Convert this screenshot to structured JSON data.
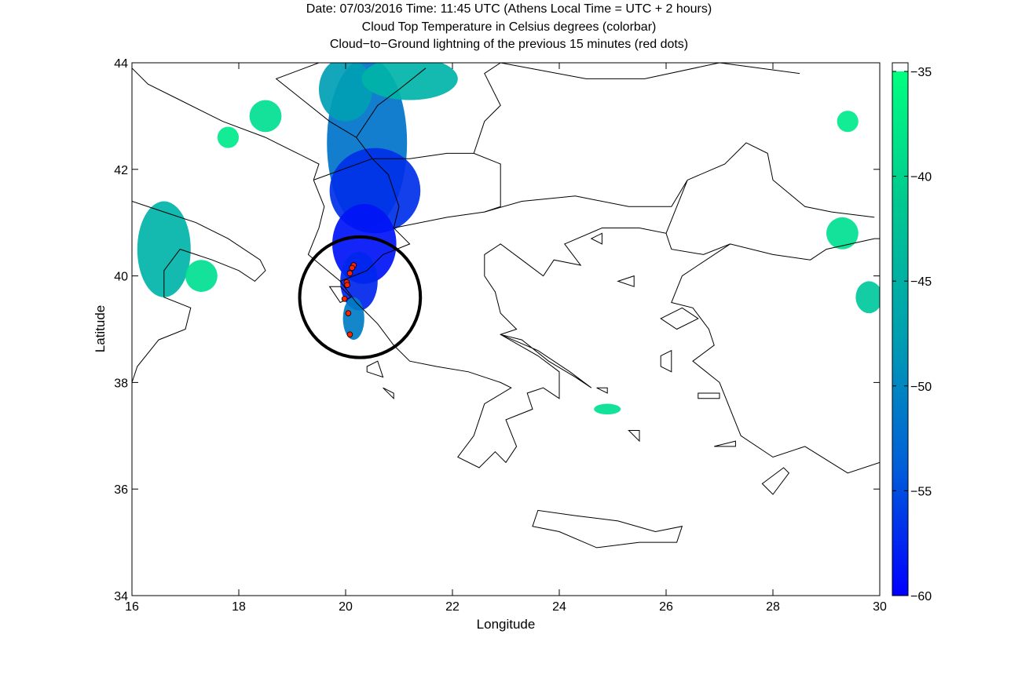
{
  "title_lines": [
    "Date: 07/03/2016 Time: 11:45 UTC (Athens Local Time = UTC + 2 hours)",
    "Cloud Top Temperature in Celsius degrees (colorbar)",
    "Cloud−to−Ground lightning of the previous 15 minutes (red dots)"
  ],
  "chart_data": {
    "type": "heatmap",
    "title": "Date: 07/03/2016 Time: 11:45 UTC (Athens Local Time = UTC + 2 hours)",
    "xlabel": "Longitude",
    "ylabel": "Latitude",
    "xlim": [
      16,
      30
    ],
    "ylim": [
      34,
      44
    ],
    "x_ticks": [
      "16",
      "18",
      "20",
      "22",
      "24",
      "26",
      "28",
      "30"
    ],
    "y_ticks": [
      "34",
      "36",
      "38",
      "40",
      "42",
      "44"
    ],
    "grid": false,
    "colorbar": {
      "label": "Cloud Top Temperature in Celsius degrees",
      "range": [
        -60,
        -35
      ],
      "ticks": [
        "-35",
        "-40",
        "-45",
        "-50",
        "-55",
        "-60"
      ],
      "colors": [
        "#00ff80",
        "#0070d0",
        "#0000ff"
      ]
    },
    "lightning_strikes": {
      "color": "#ff2200",
      "points": [
        {
          "lon": 20.15,
          "lat": 40.2
        },
        {
          "lon": 20.12,
          "lat": 40.15
        },
        {
          "lon": 20.08,
          "lat": 40.05
        },
        {
          "lon": 20.02,
          "lat": 39.88
        },
        {
          "lon": 20.03,
          "lat": 39.83
        },
        {
          "lon": 19.98,
          "lat": 39.57
        },
        {
          "lon": 20.05,
          "lat": 39.3
        },
        {
          "lon": 20.08,
          "lat": 38.9
        }
      ]
    },
    "highlight_circle": {
      "center_lon": 20.27,
      "center_lat": 39.6,
      "radius_deg": 1.13,
      "color": "#000000"
    },
    "cloud_cells": [
      {
        "lon": 20.4,
        "lat": 42.5,
        "rlon": 0.75,
        "rlat": 1.6,
        "temp": -48
      },
      {
        "lon": 20.55,
        "lat": 41.6,
        "rlon": 0.85,
        "rlat": 0.8,
        "temp": -55
      },
      {
        "lon": 20.35,
        "lat": 40.6,
        "rlon": 0.6,
        "rlat": 0.75,
        "temp": -58
      },
      {
        "lon": 20.25,
        "lat": 39.9,
        "rlon": 0.35,
        "rlat": 0.55,
        "temp": -56
      },
      {
        "lon": 20.15,
        "lat": 39.2,
        "rlon": 0.2,
        "rlat": 0.4,
        "temp": -47
      },
      {
        "lon": 20.0,
        "lat": 43.5,
        "rlon": 0.5,
        "rlat": 0.6,
        "temp": -44
      },
      {
        "lon": 21.2,
        "lat": 43.7,
        "rlon": 0.9,
        "rlat": 0.4,
        "temp": -42
      },
      {
        "lon": 16.6,
        "lat": 40.5,
        "rlon": 0.5,
        "rlat": 0.9,
        "temp": -42
      },
      {
        "lon": 17.3,
        "lat": 40.0,
        "rlon": 0.3,
        "rlat": 0.3,
        "temp": -38
      },
      {
        "lon": 18.5,
        "lat": 43.0,
        "rlon": 0.3,
        "rlat": 0.3,
        "temp": -38
      },
      {
        "lon": 29.3,
        "lat": 40.8,
        "rlon": 0.3,
        "rlat": 0.3,
        "temp": -38
      },
      {
        "lon": 29.8,
        "lat": 39.6,
        "rlon": 0.25,
        "rlat": 0.3,
        "temp": -40
      },
      {
        "lon": 29.4,
        "lat": 42.9,
        "rlon": 0.2,
        "rlat": 0.2,
        "temp": -37
      },
      {
        "lon": 24.9,
        "lat": 37.5,
        "rlon": 0.25,
        "rlat": 0.1,
        "temp": -38
      },
      {
        "lon": 17.8,
        "lat": 42.6,
        "rlon": 0.2,
        "rlat": 0.2,
        "temp": -37
      }
    ],
    "coastlines": [
      {
        "name": "greece-mainland",
        "points": [
          [
            19.4,
            41.8
          ],
          [
            19.6,
            41.3
          ],
          [
            19.5,
            40.9
          ],
          [
            19.3,
            40.4
          ],
          [
            19.9,
            39.9
          ],
          [
            20.2,
            39.5
          ],
          [
            20.6,
            39.1
          ],
          [
            20.9,
            38.7
          ],
          [
            21.2,
            38.4
          ],
          [
            21.7,
            38.3
          ],
          [
            22.3,
            38.2
          ],
          [
            22.9,
            38.0
          ],
          [
            23.1,
            37.9
          ],
          [
            22.6,
            37.6
          ],
          [
            22.4,
            37.0
          ],
          [
            22.1,
            36.6
          ],
          [
            22.5,
            36.4
          ],
          [
            22.8,
            36.7
          ],
          [
            23.0,
            36.5
          ],
          [
            23.2,
            36.8
          ],
          [
            23.0,
            37.3
          ],
          [
            23.5,
            37.5
          ],
          [
            23.4,
            37.8
          ],
          [
            23.7,
            37.9
          ],
          [
            24.0,
            37.7
          ],
          [
            24.0,
            38.2
          ],
          [
            23.6,
            38.5
          ],
          [
            22.9,
            38.9
          ],
          [
            23.2,
            39.0
          ],
          [
            22.9,
            39.3
          ],
          [
            22.8,
            39.7
          ],
          [
            22.6,
            40.0
          ],
          [
            22.6,
            40.4
          ],
          [
            22.9,
            40.6
          ],
          [
            23.3,
            40.3
          ],
          [
            23.7,
            40.0
          ],
          [
            23.9,
            40.3
          ],
          [
            24.4,
            40.2
          ],
          [
            24.1,
            40.6
          ],
          [
            24.8,
            40.9
          ],
          [
            25.5,
            40.9
          ],
          [
            26.0,
            40.8
          ],
          [
            26.1,
            40.5
          ],
          [
            26.7,
            40.4
          ],
          [
            27.2,
            40.6
          ],
          [
            28.0,
            40.4
          ],
          [
            28.7,
            40.3
          ],
          [
            29.0,
            40.5
          ],
          [
            29.9,
            40.7
          ],
          [
            30.0,
            40.7
          ]
        ]
      },
      {
        "name": "albania-coast",
        "points": [
          [
            19.4,
            41.8
          ],
          [
            19.5,
            42.1
          ],
          [
            19.1,
            42.3
          ],
          [
            18.7,
            42.5
          ],
          [
            18.5,
            42.6
          ]
        ]
      },
      {
        "name": "croatia-coast",
        "points": [
          [
            18.5,
            42.6
          ],
          [
            17.7,
            42.9
          ],
          [
            16.9,
            43.3
          ],
          [
            16.3,
            43.6
          ],
          [
            16.0,
            43.9
          ]
        ]
      },
      {
        "name": "italy-heel",
        "points": [
          [
            16.0,
            41.4
          ],
          [
            16.6,
            41.2
          ],
          [
            17.2,
            41.0
          ],
          [
            17.8,
            40.7
          ],
          [
            18.4,
            40.3
          ],
          [
            18.5,
            40.1
          ],
          [
            18.3,
            39.9
          ],
          [
            18.0,
            40.1
          ],
          [
            17.5,
            40.3
          ],
          [
            16.9,
            40.5
          ],
          [
            16.6,
            40.1
          ],
          [
            16.6,
            39.6
          ],
          [
            17.1,
            39.4
          ],
          [
            17.0,
            39.0
          ],
          [
            16.5,
            38.8
          ],
          [
            16.1,
            38.3
          ],
          [
            16.0,
            38.0
          ]
        ]
      },
      {
        "name": "turkey-aegean",
        "points": [
          [
            30.0,
            36.5
          ],
          [
            29.4,
            36.3
          ],
          [
            28.6,
            36.8
          ],
          [
            28.0,
            36.6
          ],
          [
            27.4,
            37.0
          ],
          [
            27.2,
            37.5
          ],
          [
            27.0,
            38.0
          ],
          [
            26.5,
            38.4
          ],
          [
            26.9,
            38.7
          ],
          [
            26.8,
            39.0
          ],
          [
            26.5,
            39.4
          ],
          [
            26.1,
            39.5
          ],
          [
            26.3,
            40.0
          ],
          [
            26.6,
            40.2
          ],
          [
            27.2,
            40.6
          ]
        ]
      },
      {
        "name": "black-sea-coast",
        "points": [
          [
            27.5,
            42.5
          ],
          [
            27.9,
            42.3
          ],
          [
            28.0,
            41.8
          ],
          [
            28.6,
            41.3
          ],
          [
            29.1,
            41.2
          ],
          [
            29.9,
            41.1
          ]
        ]
      }
    ],
    "islands": [
      {
        "name": "crete",
        "points": [
          [
            23.5,
            35.3
          ],
          [
            23.6,
            35.6
          ],
          [
            24.3,
            35.5
          ],
          [
            25.1,
            35.4
          ],
          [
            25.8,
            35.2
          ],
          [
            26.3,
            35.3
          ],
          [
            26.2,
            35.0
          ],
          [
            25.5,
            35.0
          ],
          [
            24.7,
            34.9
          ],
          [
            24.0,
            35.2
          ],
          [
            23.5,
            35.3
          ]
        ]
      },
      {
        "name": "euboea",
        "points": [
          [
            22.9,
            38.9
          ],
          [
            23.3,
            38.8
          ],
          [
            23.8,
            38.4
          ],
          [
            24.3,
            38.1
          ],
          [
            24.6,
            37.9
          ],
          [
            24.2,
            38.2
          ],
          [
            23.6,
            38.6
          ],
          [
            22.9,
            38.9
          ]
        ]
      },
      {
        "name": "rhodes",
        "points": [
          [
            27.8,
            36.1
          ],
          [
            28.2,
            36.4
          ],
          [
            28.3,
            36.3
          ],
          [
            28.0,
            35.9
          ],
          [
            27.8,
            36.1
          ]
        ]
      },
      {
        "name": "lesbos",
        "points": [
          [
            25.9,
            39.2
          ],
          [
            26.3,
            39.4
          ],
          [
            26.6,
            39.2
          ],
          [
            26.2,
            39.0
          ],
          [
            25.9,
            39.2
          ]
        ]
      },
      {
        "name": "chios",
        "points": [
          [
            25.9,
            38.5
          ],
          [
            26.1,
            38.6
          ],
          [
            26.1,
            38.2
          ],
          [
            25.9,
            38.3
          ],
          [
            25.9,
            38.5
          ]
        ]
      },
      {
        "name": "samos",
        "points": [
          [
            26.6,
            37.8
          ],
          [
            27.0,
            37.8
          ],
          [
            27.0,
            37.7
          ],
          [
            26.6,
            37.7
          ],
          [
            26.6,
            37.8
          ]
        ]
      },
      {
        "name": "lemnos",
        "points": [
          [
            25.1,
            39.9
          ],
          [
            25.4,
            40.0
          ],
          [
            25.4,
            39.8
          ],
          [
            25.1,
            39.9
          ]
        ]
      },
      {
        "name": "thasos",
        "points": [
          [
            24.6,
            40.7
          ],
          [
            24.8,
            40.8
          ],
          [
            24.8,
            40.6
          ],
          [
            24.6,
            40.7
          ]
        ]
      },
      {
        "name": "corfu",
        "points": [
          [
            19.7,
            39.8
          ],
          [
            19.9,
            39.8
          ],
          [
            20.1,
            39.6
          ],
          [
            19.9,
            39.5
          ],
          [
            19.7,
            39.8
          ]
        ]
      },
      {
        "name": "kefalonia",
        "points": [
          [
            20.4,
            38.3
          ],
          [
            20.6,
            38.4
          ],
          [
            20.7,
            38.1
          ],
          [
            20.4,
            38.2
          ],
          [
            20.4,
            38.3
          ]
        ]
      },
      {
        "name": "zakynthos",
        "points": [
          [
            20.7,
            37.9
          ],
          [
            20.9,
            37.8
          ],
          [
            20.9,
            37.7
          ],
          [
            20.7,
            37.9
          ]
        ]
      },
      {
        "name": "naxos",
        "points": [
          [
            25.3,
            37.1
          ],
          [
            25.5,
            37.1
          ],
          [
            25.5,
            36.9
          ],
          [
            25.3,
            37.1
          ]
        ]
      },
      {
        "name": "andros",
        "points": [
          [
            24.7,
            37.9
          ],
          [
            24.9,
            37.9
          ],
          [
            24.9,
            37.8
          ],
          [
            24.7,
            37.9
          ]
        ]
      },
      {
        "name": "kos",
        "points": [
          [
            26.9,
            36.8
          ],
          [
            27.3,
            36.9
          ],
          [
            27.3,
            36.8
          ],
          [
            26.9,
            36.8
          ]
        ]
      }
    ],
    "borders": [
      {
        "points": [
          [
            19.4,
            41.8
          ],
          [
            20.5,
            42.2
          ],
          [
            20.8,
            41.9
          ],
          [
            21.0,
            41.3
          ],
          [
            20.9,
            40.9
          ],
          [
            21.2,
            40.6
          ],
          [
            20.7,
            40.4
          ],
          [
            20.4,
            40.1
          ],
          [
            19.9,
            39.9
          ]
        ]
      },
      {
        "points": [
          [
            20.9,
            40.9
          ],
          [
            21.9,
            41.1
          ],
          [
            22.6,
            41.2
          ],
          [
            23.3,
            41.4
          ],
          [
            24.3,
            41.5
          ],
          [
            25.3,
            41.3
          ],
          [
            26.1,
            41.3
          ],
          [
            26.4,
            41.8
          ],
          [
            26.0,
            40.8
          ]
        ]
      },
      {
        "points": [
          [
            20.5,
            42.2
          ],
          [
            21.2,
            42.2
          ],
          [
            21.9,
            42.3
          ],
          [
            22.4,
            42.3
          ],
          [
            22.9,
            42.1
          ],
          [
            22.9,
            41.3
          ],
          [
            22.6,
            41.2
          ]
        ]
      },
      {
        "points": [
          [
            22.4,
            42.3
          ],
          [
            22.6,
            42.9
          ],
          [
            22.9,
            43.2
          ],
          [
            22.6,
            43.8
          ],
          [
            22.9,
            44.0
          ]
        ]
      },
      {
        "points": [
          [
            26.4,
            41.8
          ],
          [
            27.1,
            42.1
          ],
          [
            27.5,
            42.5
          ]
        ]
      },
      {
        "points": [
          [
            20.5,
            42.2
          ],
          [
            20.2,
            42.6
          ],
          [
            19.7,
            42.9
          ],
          [
            19.2,
            43.3
          ],
          [
            18.7,
            43.7
          ],
          [
            19.5,
            44.0
          ]
        ]
      },
      {
        "points": [
          [
            20.2,
            42.6
          ],
          [
            20.6,
            43.2
          ],
          [
            21.0,
            43.5
          ],
          [
            21.5,
            43.9
          ]
        ]
      },
      {
        "points": [
          [
            22.9,
            44.0
          ],
          [
            24.5,
            43.7
          ],
          [
            25.6,
            43.7
          ],
          [
            27.0,
            44.0
          ],
          [
            28.5,
            43.8
          ]
        ]
      }
    ]
  }
}
